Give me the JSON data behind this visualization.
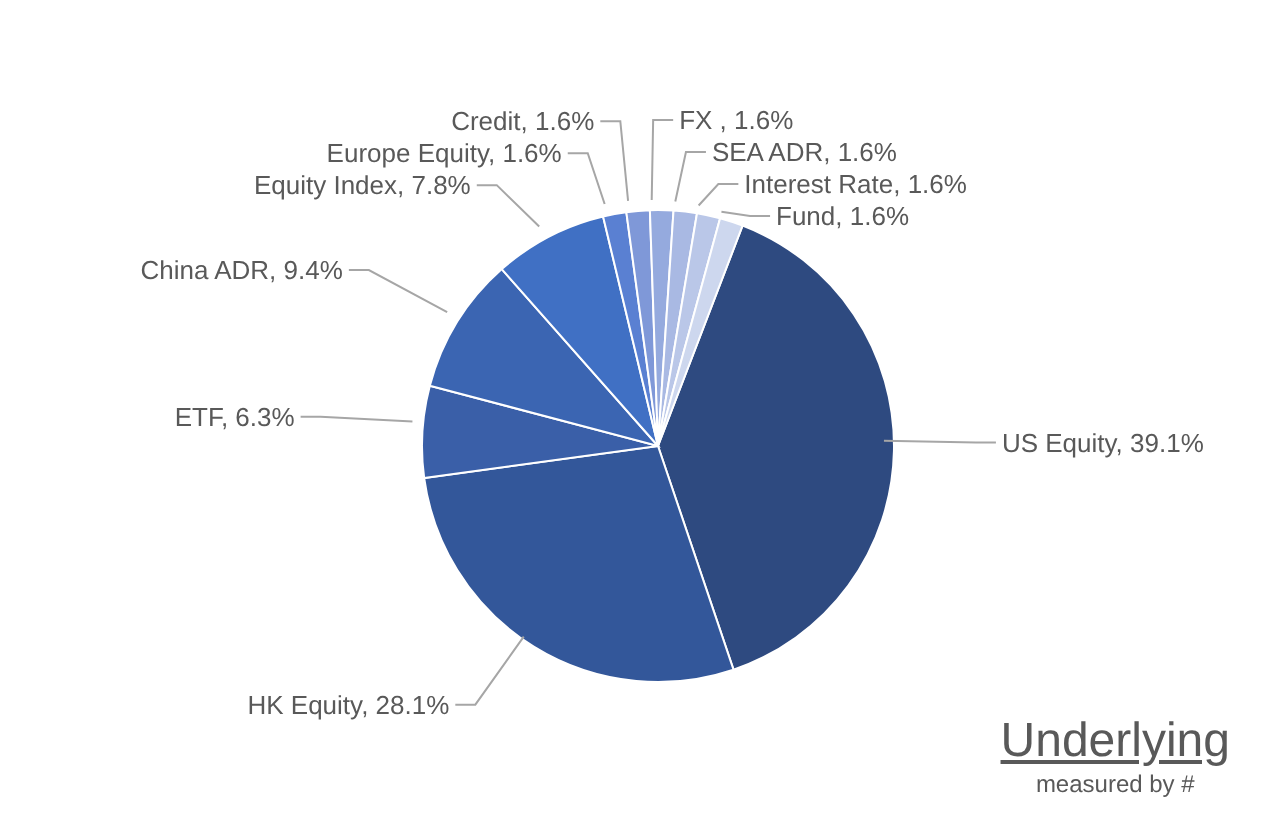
{
  "chart_data": {
    "type": "pie",
    "title": "Underlying",
    "subtitle": "measured by #",
    "categories": [
      "US Equity",
      "HK Equity",
      "ETF",
      "China ADR",
      "Equity Index",
      "Europe Equity",
      "Credit",
      "FX ",
      "SEA ADR",
      "Interest Rate",
      "Fund"
    ],
    "values": [
      39.1,
      28.1,
      6.3,
      9.4,
      7.8,
      1.6,
      1.6,
      1.6,
      1.6,
      1.6,
      1.6
    ],
    "value_labels": [
      "39.1%",
      "28.1%",
      "6.3%",
      "9.4%",
      "7.8%",
      "1.6%",
      "1.6%",
      "1.6%",
      "1.6%",
      "1.6%",
      "1.6%"
    ],
    "colors": [
      "#2e4a80",
      "#33579a",
      "#3a5fa8",
      "#3b65b2",
      "#4070c4",
      "#5a80d2",
      "#7f98d8",
      "#95aade",
      "#a9b9e3",
      "#bac7e8",
      "#cdd7ee"
    ],
    "data_labels": true
  }
}
